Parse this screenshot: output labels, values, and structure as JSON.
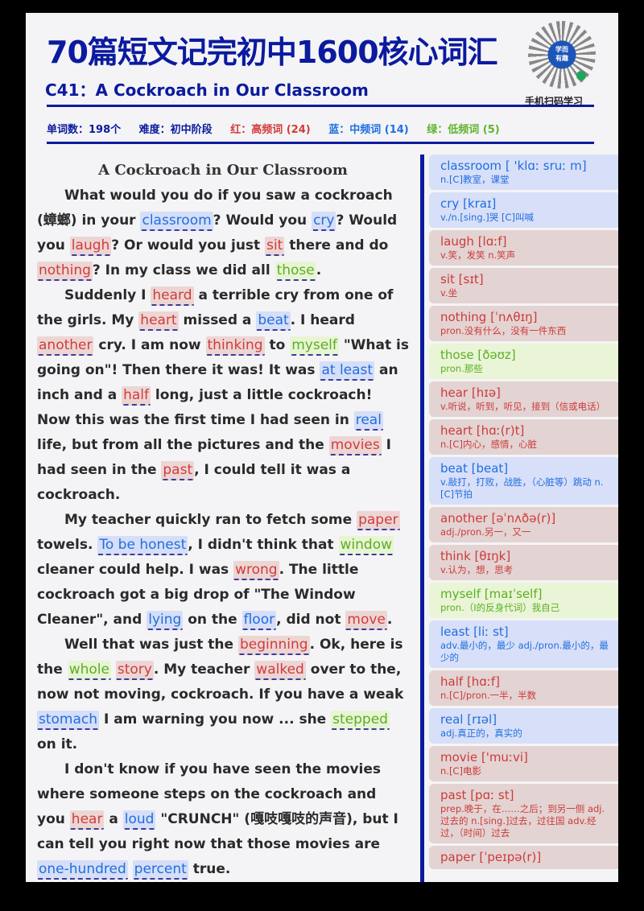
{
  "header": {
    "title": "70篇短文记完初中1600核心词汇",
    "subtitle": "C41：A Cockroach in Our Classroom",
    "qr_center_text": "学而 有趣",
    "qr_caption": "手机扫码学习",
    "meta": {
      "word_count": "单词数：198个",
      "level": "难度：初中阶段",
      "red_legend": "红：高频词 (24)",
      "blue_legend": "蓝：中频词 (14)",
      "green_legend": "绿：低频词 (5)"
    }
  },
  "colors": {
    "title_blue": "#0b1a9e",
    "high_freq_red": "#d23b3b",
    "mid_freq_blue": "#1f6fe0",
    "low_freq_green": "#5cae24"
  },
  "article": {
    "heading": "A Cockroach in Our Classroom",
    "p1": {
      "t1": "What would you do if you saw a cockroach (蟑螂) in your ",
      "w1": "classroom",
      "t2": "? Would you ",
      "w2": "cry",
      "t3": "? Would you ",
      "w3": "laugh",
      "t4": "? Or would you just ",
      "w4": "sit",
      "t5": " there and do ",
      "w5": "nothing",
      "t6": "? In my class we did all ",
      "w6": "those",
      "t7": "."
    },
    "p2": {
      "t1": "Suddenly I ",
      "w1": "heard",
      "t2": " a terrible cry from one of the girls. My ",
      "w2": "heart",
      "t3": " missed a ",
      "w3": "beat",
      "t4": ". I heard ",
      "w4": "another",
      "t5": " cry. I am now ",
      "w5": "thinking",
      "t6": " to ",
      "w6": "myself",
      "t7": " \"What is going on\"! Then there it was! It was ",
      "w7": "at least",
      "t8": " an inch and a ",
      "w8": "half",
      "t9": " long, just a little cockroach! Now this was the first time I had seen in ",
      "w9": "real",
      "t10": " life, but from all the pictures and the ",
      "w10": "movies",
      "t11": " I had seen in the ",
      "w11": "past",
      "t12": ", I could tell it was a cockroach."
    },
    "p3": {
      "t1": "My teacher quickly ran to fetch some ",
      "w1": "paper",
      "t2": " towels. ",
      "w2": "To be honest",
      "t3": ", I didn't think that ",
      "w3": "window",
      "t4": " cleaner could help. I was ",
      "w4": "wrong",
      "t5": ". The little cockroach got a big drop of \"The Window Cleaner\", and ",
      "w5": "lying",
      "t6": " on the ",
      "w6": "floor",
      "t7": ", did not ",
      "w7": "move",
      "t8": "."
    },
    "p4": {
      "t1": "Well that was just the ",
      "w1": "beginning",
      "t2": ". Ok, here is the ",
      "w2": "whole",
      "t3": " ",
      "w3": "story",
      "t4": ". My teacher ",
      "w4": "walked",
      "t5": " over to the, now not moving, cockroach. If you have a weak ",
      "w5": "stomach",
      "t6": " I am warning you now ... she ",
      "w6": "stepped",
      "t7": " on it."
    },
    "p5": {
      "t1": "I don't know if you have seen the movies where someone steps on the cockroach and you ",
      "w1": "hear",
      "t2": " a ",
      "w2": "loud",
      "t3": " \"CRUNCH\" (嘎吱嘎吱的声音), but I can tell you right now that those movies are ",
      "w3": "one-hundred",
      "t4": " ",
      "w4": "percent",
      "t5": " true."
    }
  },
  "vocabulary": [
    {
      "word": "classroom",
      "phonetic": "[ 'klɑː sruː m]",
      "meaning": "n.[C]教室，课堂",
      "color": "blue"
    },
    {
      "word": "cry",
      "phonetic": "[kraɪ]",
      "meaning": "v./n.[sing.]哭 [C]叫喊",
      "color": "blue"
    },
    {
      "word": "laugh",
      "phonetic": "[lɑːf]",
      "meaning": "v.笑，发笑 n.笑声",
      "color": "red"
    },
    {
      "word": "sit",
      "phonetic": "[sɪt]",
      "meaning": "v.坐",
      "color": "red"
    },
    {
      "word": "nothing",
      "phonetic": "[ˈnʌθɪŋ]",
      "meaning": "pron.没有什么，没有一件东西",
      "color": "red"
    },
    {
      "word": "those",
      "phonetic": "[ðəʊz]",
      "meaning": "pron.那些",
      "color": "green"
    },
    {
      "word": "hear",
      "phonetic": "[hɪə]",
      "meaning": "v.听说，听到，听见，接到（信或电话）",
      "color": "red"
    },
    {
      "word": "heart",
      "phonetic": "[hɑː(r)t]",
      "meaning": "n.[C]内心，感情，心脏",
      "color": "red"
    },
    {
      "word": "beat",
      "phonetic": "[beat]",
      "meaning": "v.敲打，打败，战胜，（心脏等）跳动 n.[C]节拍",
      "color": "blue"
    },
    {
      "word": "another",
      "phonetic": "[əˈnʌðə(r)]",
      "meaning": "adj./pron.另一，又一",
      "color": "red"
    },
    {
      "word": "think",
      "phonetic": "[θɪŋk]",
      "meaning": "v.认为，想，思考",
      "color": "red"
    },
    {
      "word": "myself",
      "phonetic": "[maɪˈself]",
      "meaning": "pron.（I的反身代词）我自己",
      "color": "green"
    },
    {
      "word": "least",
      "phonetic": "[liː st]",
      "meaning": "adv.最小的，最少 adj./pron.最小的，最少的",
      "color": "blue"
    },
    {
      "word": "half",
      "phonetic": "[hɑːf]",
      "meaning": "n.[C]/pron.一半，半数",
      "color": "red"
    },
    {
      "word": "real",
      "phonetic": "[rɪəl]",
      "meaning": "adj.真正的，真实的",
      "color": "blue"
    },
    {
      "word": "movie",
      "phonetic": "['muːvi]",
      "meaning": "n.[C]电影",
      "color": "red"
    },
    {
      "word": "past",
      "phonetic": "[pɑː st]",
      "meaning": "prep.晚于，在……之后；到另一侧 adj.过去的 n.[sing.]过去，过往国 adv.经过，（时间）过去",
      "color": "red"
    },
    {
      "word": "paper",
      "phonetic": "[ˈpeɪpə(r)]",
      "meaning": "",
      "color": "red"
    }
  ]
}
